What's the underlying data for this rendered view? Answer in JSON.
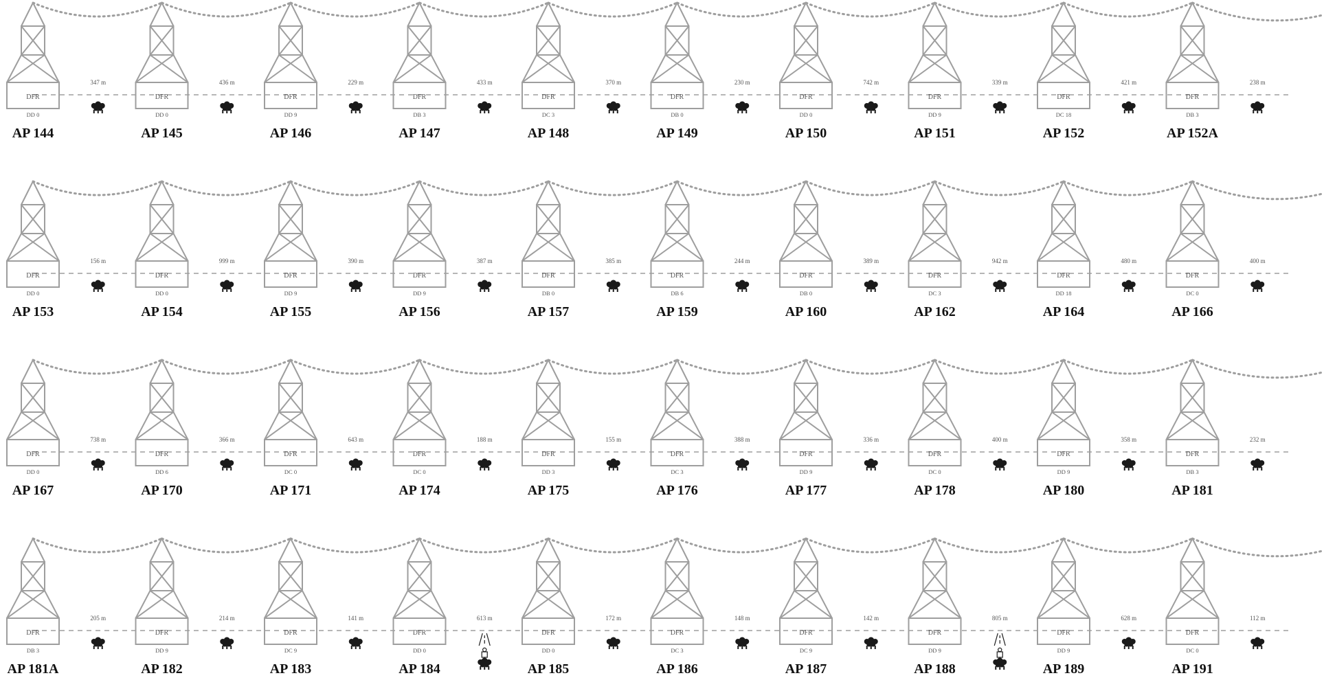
{
  "colors": {
    "structure": "#9e9e9e",
    "line": "#9e9e9e",
    "text": "#555555",
    "name": "#111111",
    "icon": "#1a1a1a"
  },
  "rows": [
    {
      "towers": [
        {
          "name": "AP 144",
          "type": "DFR",
          "code": "DD 0"
        },
        {
          "name": "AP 145",
          "type": "DFR",
          "code": "DD 0"
        },
        {
          "name": "AP 146",
          "type": "DFR",
          "code": "DD 9"
        },
        {
          "name": "AP 147",
          "type": "DFR",
          "code": "DB 3"
        },
        {
          "name": "AP 148",
          "type": "DFR",
          "code": "DC 3"
        },
        {
          "name": "AP 149",
          "type": "DFR",
          "code": "DB 0"
        },
        {
          "name": "AP 150",
          "type": "DFR",
          "code": "DD 0"
        },
        {
          "name": "AP 151",
          "type": "DFR",
          "code": "DD 9"
        },
        {
          "name": "AP 152",
          "type": "DFR",
          "code": "DC 18"
        },
        {
          "name": "AP 152A",
          "type": "DFR",
          "code": "DB 3"
        }
      ],
      "spans": [
        {
          "length": "347 m",
          "icon": "tree-cluster-icon"
        },
        {
          "length": "436 m",
          "icon": "tree-cluster-icon"
        },
        {
          "length": "229 m",
          "icon": "tree-cluster-icon"
        },
        {
          "length": "433 m",
          "icon": "tree-cluster-icon"
        },
        {
          "length": "370 m",
          "icon": "tree-cluster-icon"
        },
        {
          "length": "230 m",
          "icon": "tree-cluster-icon"
        },
        {
          "length": "742 m",
          "icon": "tree-cluster-icon"
        },
        {
          "length": "339 m",
          "icon": "tree-cluster-icon"
        },
        {
          "length": "421 m",
          "icon": "tree-cluster-icon"
        },
        {
          "length": "238 m",
          "icon": "tree-cluster-icon"
        }
      ]
    },
    {
      "towers": [
        {
          "name": "AP 153",
          "type": "DFR",
          "code": "DD 0"
        },
        {
          "name": "AP 154",
          "type": "DFR",
          "code": "DD 0"
        },
        {
          "name": "AP 155",
          "type": "DFR",
          "code": "DD 9"
        },
        {
          "name": "AP 156",
          "type": "DFR",
          "code": "DD 9"
        },
        {
          "name": "AP 157",
          "type": "DFR",
          "code": "DB 0"
        },
        {
          "name": "AP 159",
          "type": "DFR",
          "code": "DB 6"
        },
        {
          "name": "AP 160",
          "type": "DFR",
          "code": "DB 0"
        },
        {
          "name": "AP 162",
          "type": "DFR",
          "code": "DC 3"
        },
        {
          "name": "AP 164",
          "type": "DFR",
          "code": "DD 18"
        },
        {
          "name": "AP 166",
          "type": "DFR",
          "code": "DC 0"
        }
      ],
      "spans": [
        {
          "length": "156 m",
          "icon": "tree-cluster-icon"
        },
        {
          "length": "999 m",
          "icon": "tree-cluster-icon"
        },
        {
          "length": "390 m",
          "icon": "tree-cluster-icon"
        },
        {
          "length": "387 m",
          "icon": "tree-cluster-icon"
        },
        {
          "length": "385 m",
          "icon": "tree-cluster-icon"
        },
        {
          "length": "244 m",
          "icon": "tree-cluster-icon"
        },
        {
          "length": "389 m",
          "icon": "tree-cluster-icon"
        },
        {
          "length": "942 m",
          "icon": "tree-cluster-icon"
        },
        {
          "length": "480 m",
          "icon": "tree-cluster-icon"
        },
        {
          "length": "400 m",
          "icon": "tree-cluster-icon"
        }
      ]
    },
    {
      "towers": [
        {
          "name": "AP 167",
          "type": "DFR",
          "code": "DD 0"
        },
        {
          "name": "AP 170",
          "type": "DFR",
          "code": "DD 6"
        },
        {
          "name": "AP 171",
          "type": "DFR",
          "code": "DC 0"
        },
        {
          "name": "AP 174",
          "type": "DFR",
          "code": "DC 0"
        },
        {
          "name": "AP 175",
          "type": "DFR",
          "code": "DD 3"
        },
        {
          "name": "AP 176",
          "type": "DFR",
          "code": "DC 3"
        },
        {
          "name": "AP 177",
          "type": "DFR",
          "code": "DD 9"
        },
        {
          "name": "AP 178",
          "type": "DFR",
          "code": "DC 0"
        },
        {
          "name": "AP 180",
          "type": "DFR",
          "code": "DD 9"
        },
        {
          "name": "AP 181",
          "type": "DFR",
          "code": "DB 3"
        }
      ],
      "spans": [
        {
          "length": "738 m",
          "icon": "tree-cluster-icon"
        },
        {
          "length": "366 m",
          "icon": "tree-cluster-icon"
        },
        {
          "length": "643 m",
          "icon": "tree-cluster-icon"
        },
        {
          "length": "188 m",
          "icon": "tree-cluster-icon"
        },
        {
          "length": "155 m",
          "icon": "tree-cluster-icon"
        },
        {
          "length": "388 m",
          "icon": "tree-cluster-icon"
        },
        {
          "length": "336 m",
          "icon": "tree-cluster-icon"
        },
        {
          "length": "400 m",
          "icon": "tree-cluster-icon"
        },
        {
          "length": "358 m",
          "icon": "tree-cluster-icon"
        },
        {
          "length": "232 m",
          "icon": "tree-cluster-icon"
        }
      ]
    },
    {
      "towers": [
        {
          "name": "AP 181A",
          "type": "DFR",
          "code": "DB 3"
        },
        {
          "name": "AP 182",
          "type": "DFR",
          "code": "DD 9"
        },
        {
          "name": "AP 183",
          "type": "DFR",
          "code": "DC 9"
        },
        {
          "name": "AP 184",
          "type": "DFR",
          "code": "DD 0"
        },
        {
          "name": "AP 185",
          "type": "DFR",
          "code": "DD 0"
        },
        {
          "name": "AP 186",
          "type": "DFR",
          "code": "DC 3"
        },
        {
          "name": "AP 187",
          "type": "DFR",
          "code": "DC 9"
        },
        {
          "name": "AP 188",
          "type": "DFR",
          "code": "DD 9"
        },
        {
          "name": "AP 189",
          "type": "DFR",
          "code": "DD 9"
        },
        {
          "name": "AP 191",
          "type": "DFR",
          "code": "DC 0"
        }
      ],
      "spans": [
        {
          "length": "205 m",
          "icon": "tree-cluster-icon"
        },
        {
          "length": "214 m",
          "icon": "tree-cluster-icon"
        },
        {
          "length": "141 m",
          "icon": "tree-cluster-icon"
        },
        {
          "length": "613 m",
          "icon": "road-crossing-icon"
        },
        {
          "length": "172 m",
          "icon": "tree-cluster-icon"
        },
        {
          "length": "148 m",
          "icon": "tree-cluster-icon"
        },
        {
          "length": "142 m",
          "icon": "tree-cluster-icon"
        },
        {
          "length": "805 m",
          "icon": "road-crossing-icon"
        },
        {
          "length": "628 m",
          "icon": "tree-cluster-icon"
        },
        {
          "length": "112 m",
          "icon": "tree-cluster-icon"
        }
      ]
    }
  ]
}
